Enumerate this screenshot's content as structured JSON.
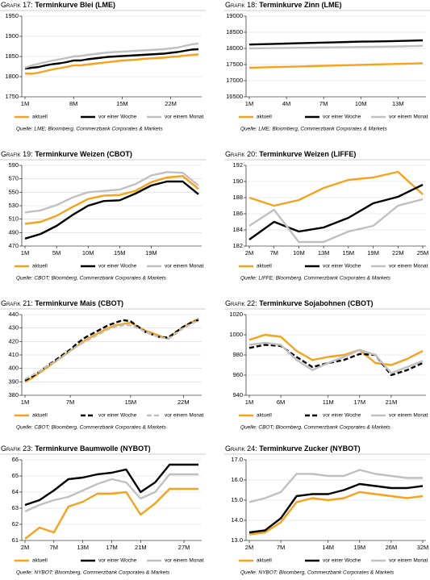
{
  "chart_data": [
    {
      "type": "line",
      "label": "Grafik 17:",
      "title": "Terminkurve Blei (LME)",
      "source": "Quelle: LME; Bloomberg, Commerzbank Corporates & Markets",
      "categories": [
        "1M",
        null,
        null,
        null,
        null,
        null,
        null,
        "8M",
        null,
        null,
        null,
        null,
        null,
        null,
        "15M",
        null,
        null,
        null,
        null,
        null,
        null,
        "22M",
        null,
        null,
        null,
        null
      ],
      "ylim": [
        1750,
        1950
      ],
      "yticks": [
        1750,
        1800,
        1850,
        1900,
        1950
      ],
      "grid": true,
      "series": [
        {
          "name": "aktuell",
          "color": "#f7a21b",
          "values": [
            1808,
            1807,
            1810,
            1814,
            1818,
            1821,
            1824,
            1828,
            1828,
            1830,
            1832,
            1834,
            1836,
            1838,
            1840,
            1841,
            1842,
            1844,
            1845,
            1846,
            1847,
            1849,
            1850,
            1852,
            1854,
            1855
          ]
        },
        {
          "name": "vor einer Woche",
          "color": "#000000",
          "values": [
            1820,
            1822,
            1824,
            1828,
            1831,
            1833,
            1836,
            1840,
            1840,
            1843,
            1845,
            1847,
            1849,
            1850,
            1851,
            1852,
            1853,
            1854,
            1855,
            1856,
            1857,
            1859,
            1861,
            1864,
            1867,
            1868
          ]
        },
        {
          "name": "vor einem Monat",
          "color": "#c0c0c0",
          "values": [
            1822,
            1828,
            1832,
            1836,
            1840,
            1843,
            1846,
            1850,
            1851,
            1854,
            1856,
            1858,
            1860,
            1861,
            1862,
            1863,
            1864,
            1865,
            1866,
            1867,
            1868,
            1870,
            1872,
            1876,
            1880,
            1882
          ]
        }
      ]
    },
    {
      "type": "line",
      "label": "Grafik 18:",
      "title": "Terminkurve Zinn (LME)",
      "source": "Quelle: LME; Bloomberg, Commerzbank Corporates & Markets",
      "categories": [
        "1M",
        null,
        null,
        "4M",
        null,
        null,
        "7M",
        null,
        null,
        "10M",
        null,
        null,
        "13M",
        null,
        null
      ],
      "ylim": [
        16500,
        19000
      ],
      "yticks": [
        16500,
        17000,
        17500,
        18000,
        18500,
        19000
      ],
      "grid": true,
      "series": [
        {
          "name": "aktuell",
          "color": "#f7a21b",
          "values": [
            17400,
            17410,
            17420,
            17430,
            17440,
            17450,
            17460,
            17470,
            17480,
            17490,
            17500,
            17510,
            17520,
            17530,
            17540
          ]
        },
        {
          "name": "vor einer Woche",
          "color": "#000000",
          "values": [
            18120,
            18130,
            18140,
            18150,
            18160,
            18170,
            18180,
            18190,
            18200,
            18210,
            18215,
            18220,
            18230,
            18240,
            18250
          ]
        },
        {
          "name": "vor einem Monat",
          "color": "#c0c0c0",
          "values": [
            18000,
            18005,
            18010,
            18015,
            18020,
            18025,
            18030,
            18035,
            18040,
            18045,
            18050,
            18055,
            18060,
            18070,
            18080
          ]
        }
      ]
    },
    {
      "type": "line",
      "label": "Grafik 19:",
      "title": "Terminkurve Weizen (CBOT)",
      "source": "Quelle: CBOT; Bloomberg, Commerzbank Corporates & Markets",
      "categories": [
        "1M",
        null,
        "5M",
        null,
        "10M",
        null,
        "15M",
        null,
        "19M",
        null,
        null,
        null
      ],
      "ylim": [
        470,
        590
      ],
      "yticks": [
        470,
        490,
        510,
        530,
        550,
        570,
        590
      ],
      "grid": true,
      "series": [
        {
          "name": "aktuell",
          "color": "#f7a21b",
          "values": [
            503,
            506,
            515,
            528,
            540,
            545,
            546,
            552,
            565,
            572,
            574,
            555
          ]
        },
        {
          "name": "vor einer Woche",
          "color": "#000000",
          "values": [
            481,
            488,
            500,
            516,
            530,
            537,
            538,
            548,
            560,
            566,
            566,
            547
          ]
        },
        {
          "name": "vor einem Monat",
          "color": "#c0c0c0",
          "values": [
            520,
            523,
            531,
            542,
            550,
            552,
            554,
            562,
            575,
            580,
            579,
            560
          ]
        }
      ]
    },
    {
      "type": "line",
      "label": "Grafik 20:",
      "title": "Terminkurve Weizen (LIFFE)",
      "source": "Quelle: LIFFE; Bloomberg, Commerzbank Corporates & Markets",
      "categories": [
        "2M",
        "7M",
        "10M",
        "13M",
        "15M",
        "19M",
        "22M",
        "25M"
      ],
      "ylim": [
        182,
        192
      ],
      "yticks": [
        182,
        184,
        186,
        188,
        190,
        192
      ],
      "grid": true,
      "series": [
        {
          "name": "aktuell",
          "color": "#f7a21b",
          "values": [
            188,
            187,
            187.7,
            189.2,
            190.2,
            190.5,
            191.2,
            188.4
          ]
        },
        {
          "name": "vor einer Woche",
          "color": "#000000",
          "values": [
            182.8,
            185,
            183.8,
            184.3,
            185.5,
            187.3,
            188.1,
            189.6
          ]
        },
        {
          "name": "vor einem Monat",
          "color": "#c0c0c0",
          "values": [
            184.5,
            186.5,
            182.5,
            182.5,
            183.8,
            184.5,
            187,
            187.8
          ]
        }
      ]
    },
    {
      "type": "line",
      "label": "Grafik 21:",
      "title": "Terminkurve Mais (CBOT)",
      "source": "Quelle: CBOT; Bloomberg, Commerzbank Corporates & Markets",
      "categories": [
        "1M",
        null,
        null,
        null,
        null,
        null,
        "7M",
        null,
        null,
        null,
        null,
        null,
        null,
        null,
        "15M",
        null,
        null,
        null,
        null,
        null,
        null,
        "22M",
        null,
        null
      ],
      "ylim": [
        380,
        440
      ],
      "yticks": [
        380,
        390,
        400,
        410,
        420,
        430,
        440
      ],
      "grid": true,
      "series": [
        {
          "name": "aktuell",
          "color": "#f7a21b",
          "values": [
            390,
            393,
            397,
            401,
            405,
            409,
            413,
            417,
            421,
            424,
            427,
            430,
            432,
            433,
            434,
            431,
            428,
            426,
            424,
            422,
            427,
            431,
            434,
            437
          ]
        },
        {
          "name": "vor einer Woche",
          "color": "#000000",
          "dashed": true,
          "values": [
            391,
            394,
            398,
            402,
            406,
            410,
            414,
            419,
            423,
            426,
            429,
            432,
            434,
            436,
            435,
            431,
            427,
            425,
            423,
            423,
            427,
            431,
            434,
            436
          ]
        },
        {
          "name": "vor einem Monat",
          "color": "#c0c0c0",
          "dashed": true,
          "values": [
            392,
            395,
            398,
            402,
            405,
            409,
            413,
            417,
            420,
            423,
            426,
            429,
            431,
            432,
            432,
            430,
            427,
            425,
            423,
            422,
            426,
            430,
            433,
            436
          ]
        }
      ]
    },
    {
      "type": "line",
      "label": "Grafik 22:",
      "title": "Terminkurve Sojabohnen (CBOT)",
      "source": "Quelle: CBOT; Bloomberg, Commerzbank Corporates & Markets",
      "categories": [
        "1M",
        null,
        "6M",
        null,
        null,
        "11M",
        null,
        "17M",
        null,
        "21M",
        null,
        null
      ],
      "ylim": [
        940,
        1020
      ],
      "yticks": [
        940,
        960,
        980,
        1000,
        1020
      ],
      "grid": true,
      "series": [
        {
          "name": "aktuell",
          "color": "#f7a21b",
          "values": [
            995,
            1000,
            998,
            984,
            975,
            978,
            980,
            985,
            972,
            970,
            976,
            984
          ]
        },
        {
          "name": "vor einer Woche",
          "color": "#000000",
          "dashed": true,
          "values": [
            987,
            990,
            989,
            978,
            968,
            972,
            975,
            981,
            980,
            960,
            965,
            972
          ]
        },
        {
          "name": "vor einem Monat",
          "color": "#c0c0c0",
          "values": [
            990,
            992,
            990,
            975,
            965,
            972,
            978,
            985,
            980,
            962,
            968,
            974
          ]
        }
      ]
    },
    {
      "type": "line",
      "label": "Grafik 23:",
      "title": "Terminkurve Baumwolle (NYBOT)",
      "source": "Quelle: NYBOT; Bloomberg, Commerzbank Corporates & Markets",
      "categories": [
        "2M",
        null,
        "7M",
        null,
        "13M",
        null,
        "17M",
        null,
        "21M",
        null,
        null,
        "27M",
        null
      ],
      "ylim": [
        61,
        66
      ],
      "yticks": [
        61,
        62,
        63,
        64,
        65,
        66
      ],
      "grid": true,
      "series": [
        {
          "name": "aktuell",
          "color": "#f7a21b",
          "values": [
            61.1,
            61.8,
            61.5,
            63.1,
            63.4,
            63.9,
            63.9,
            64.0,
            62.6,
            63.3,
            64.2,
            64.2,
            64.2
          ]
        },
        {
          "name": "vor einer Woche",
          "color": "#000000",
          "values": [
            63.2,
            63.5,
            64.1,
            64.8,
            64.9,
            65.1,
            65.2,
            65.4,
            64.0,
            64.6,
            65.7,
            65.7,
            65.7
          ]
        },
        {
          "name": "vor einem Monat",
          "color": "#c0c0c0",
          "values": [
            62.8,
            63.2,
            63.5,
            63.7,
            64.1,
            64.5,
            64.8,
            64.6,
            63.6,
            64.0,
            65.1,
            65.1,
            65.1
          ]
        }
      ]
    },
    {
      "type": "line",
      "label": "Grafik 24:",
      "title": "Terminkurve Zucker (NYBOT)",
      "source": "Quelle: NYBOT; Bloomberg, Commerzbank Corporates & Markets",
      "categories": [
        "2M",
        null,
        "7M",
        null,
        null,
        "14M",
        null,
        "19M",
        null,
        "26M",
        null,
        "32M"
      ],
      "ylim": [
        13,
        17
      ],
      "yticks": [
        {
          "value": 13,
          "label": "13.0"
        },
        {
          "value": 14,
          "label": "14.0"
        },
        {
          "value": 15,
          "label": "15.0"
        },
        {
          "value": 16,
          "label": "16.0"
        },
        {
          "value": 17,
          "label": "17.0"
        }
      ],
      "grid": true,
      "series": [
        {
          "name": "aktuell",
          "color": "#f7a21b",
          "values": [
            13.3,
            13.4,
            13.9,
            14.9,
            15.1,
            15.0,
            15.1,
            15.4,
            15.3,
            15.2,
            15.1,
            15.2
          ]
        },
        {
          "name": "vor einer Woche",
          "color": "#000000",
          "values": [
            13.4,
            13.5,
            14.1,
            15.2,
            15.3,
            15.3,
            15.5,
            15.8,
            15.7,
            15.6,
            15.6,
            15.7
          ]
        },
        {
          "name": "vor einem Monat",
          "color": "#c0c0c0",
          "values": [
            14.9,
            15.1,
            15.4,
            16.3,
            16.3,
            16.2,
            16.2,
            16.5,
            16.3,
            16.2,
            16.1,
            16.1
          ]
        }
      ]
    }
  ]
}
